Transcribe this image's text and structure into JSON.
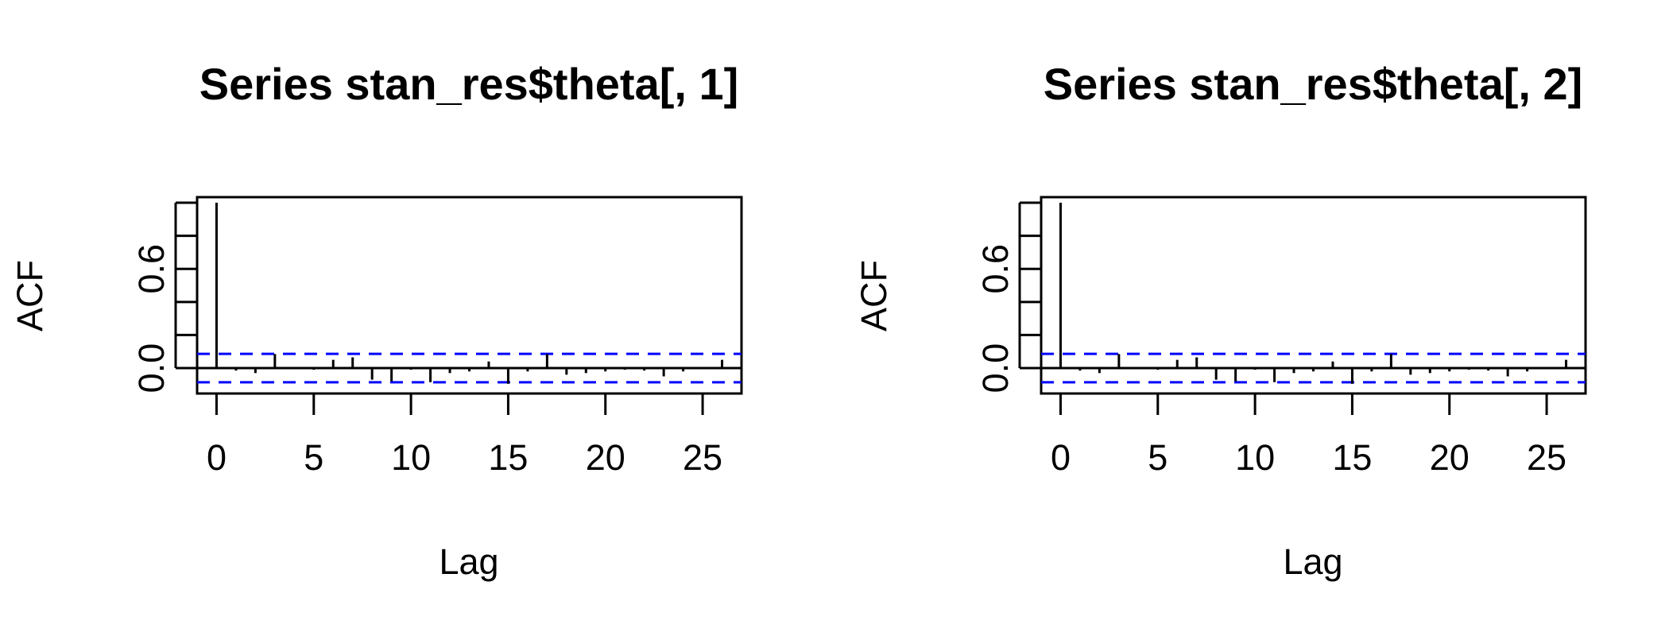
{
  "chart_data": [
    {
      "type": "bar",
      "title": "Series  stan_res$theta[, 1]",
      "xlabel": "Lag",
      "ylabel": "ACF",
      "xlim": [
        -1,
        27
      ],
      "ylim": [
        -0.12,
        1.0
      ],
      "x_ticks": [
        "0",
        "5",
        "10",
        "15",
        "20",
        "25"
      ],
      "y_ticks": [
        "0.0",
        "0.6"
      ],
      "ci_bound": 0.086,
      "colors": {
        "bars": "#000000",
        "ci": "#0000ff"
      },
      "lags": [
        0,
        1,
        2,
        3,
        4,
        5,
        6,
        7,
        8,
        9,
        10,
        11,
        12,
        13,
        14,
        15,
        16,
        17,
        18,
        19,
        20,
        21,
        22,
        23,
        24,
        25,
        26
      ],
      "acf": [
        1.0,
        -0.015,
        -0.03,
        0.085,
        0.005,
        -0.01,
        0.05,
        0.065,
        -0.07,
        -0.08,
        -0.01,
        -0.085,
        -0.03,
        -0.02,
        0.04,
        -0.095,
        -0.02,
        0.085,
        -0.04,
        -0.03,
        -0.02,
        -0.01,
        -0.015,
        -0.05,
        -0.02,
        0.005,
        0.05
      ]
    },
    {
      "type": "bar",
      "title": "Series  stan_res$theta[, 2]",
      "xlabel": "Lag",
      "ylabel": "ACF",
      "xlim": [
        -1,
        27
      ],
      "ylim": [
        -0.12,
        1.0
      ],
      "x_ticks": [
        "0",
        "5",
        "10",
        "15",
        "20",
        "25"
      ],
      "y_ticks": [
        "0.0",
        "0.6"
      ],
      "ci_bound": 0.086,
      "colors": {
        "bars": "#000000",
        "ci": "#0000ff"
      },
      "lags": [
        0,
        1,
        2,
        3,
        4,
        5,
        6,
        7,
        8,
        9,
        10,
        11,
        12,
        13,
        14,
        15,
        16,
        17,
        18,
        19,
        20,
        21,
        22,
        23,
        24,
        25,
        26
      ],
      "acf": [
        1.0,
        -0.015,
        -0.03,
        0.085,
        0.005,
        -0.01,
        0.05,
        0.065,
        -0.07,
        -0.08,
        -0.01,
        -0.085,
        -0.03,
        -0.02,
        0.04,
        -0.095,
        -0.02,
        0.085,
        -0.04,
        -0.03,
        -0.02,
        -0.01,
        -0.015,
        -0.05,
        -0.02,
        0.005,
        0.05
      ]
    }
  ]
}
